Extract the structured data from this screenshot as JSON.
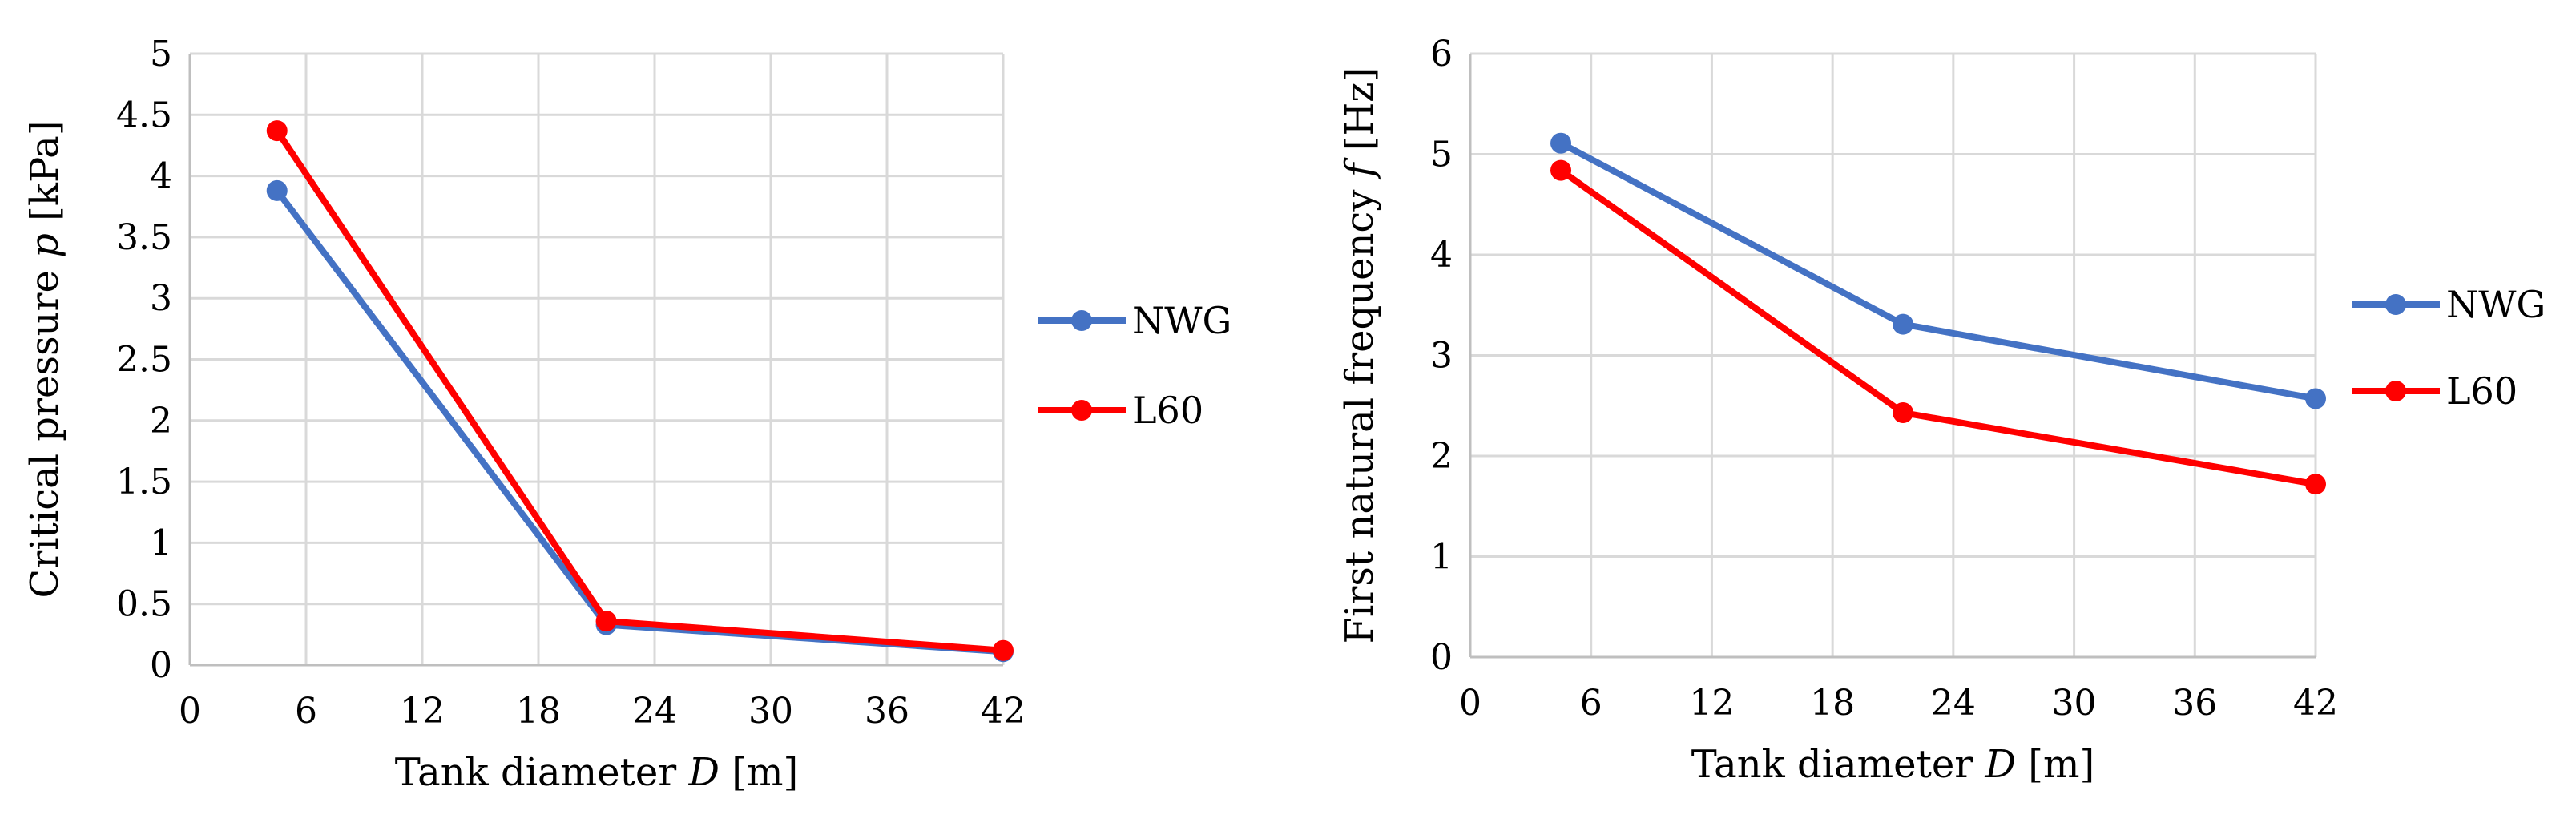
{
  "chart_data": [
    {
      "type": "line",
      "title": "",
      "xlabel": "Tank diameter",
      "xlabel_var": "D",
      "xlabel_unit": "[m]",
      "ylabel": "Critical pressure",
      "ylabel_var": "p",
      "ylabel_unit": "[kPa]",
      "xlim": [
        0,
        42
      ],
      "ylim": [
        0,
        5
      ],
      "x_ticks": [
        0,
        6,
        12,
        18,
        24,
        30,
        36,
        42
      ],
      "x_tick_labels": [
        "0",
        "6",
        "12",
        "18",
        "24",
        "30",
        "36",
        "42"
      ],
      "y_ticks": [
        0,
        0.5,
        1,
        1.5,
        2,
        2.5,
        3,
        3.5,
        4,
        4.5,
        5
      ],
      "y_tick_labels": [
        "0",
        "0.5",
        "1",
        "1.5",
        "2",
        "2.5",
        "3",
        "3.5",
        "4",
        "4.5",
        "5"
      ],
      "grid": true,
      "legend_position": "right",
      "series": [
        {
          "name": "NWG",
          "color": "#4472c4",
          "x": [
            4.5,
            21.5,
            42
          ],
          "y": [
            3.88,
            0.33,
            0.11
          ]
        },
        {
          "name": "L60",
          "color": "#ff0000",
          "x": [
            4.5,
            21.5,
            42
          ],
          "y": [
            4.37,
            0.36,
            0.12
          ]
        }
      ]
    },
    {
      "type": "line",
      "title": "",
      "xlabel": "Tank diameter",
      "xlabel_var": "D",
      "xlabel_unit": "[m]",
      "ylabel": "First natural frequency",
      "ylabel_var": "f",
      "ylabel_unit": "[Hz]",
      "xlim": [
        0,
        42
      ],
      "ylim": [
        0,
        6
      ],
      "x_ticks": [
        0,
        6,
        12,
        18,
        24,
        30,
        36,
        42
      ],
      "x_tick_labels": [
        "0",
        "6",
        "12",
        "18",
        "24",
        "30",
        "36",
        "42"
      ],
      "y_ticks": [
        0,
        1,
        2,
        3,
        4,
        5,
        6
      ],
      "y_tick_labels": [
        "0",
        "1",
        "2",
        "3",
        "4",
        "5",
        "6"
      ],
      "grid": true,
      "legend_position": "right",
      "series": [
        {
          "name": "NWG",
          "color": "#4472c4",
          "x": [
            4.5,
            21.5,
            42
          ],
          "y": [
            5.11,
            3.31,
            2.57
          ]
        },
        {
          "name": "L60",
          "color": "#ff0000",
          "x": [
            4.5,
            21.5,
            42
          ],
          "y": [
            4.84,
            2.43,
            1.72
          ]
        }
      ]
    }
  ]
}
